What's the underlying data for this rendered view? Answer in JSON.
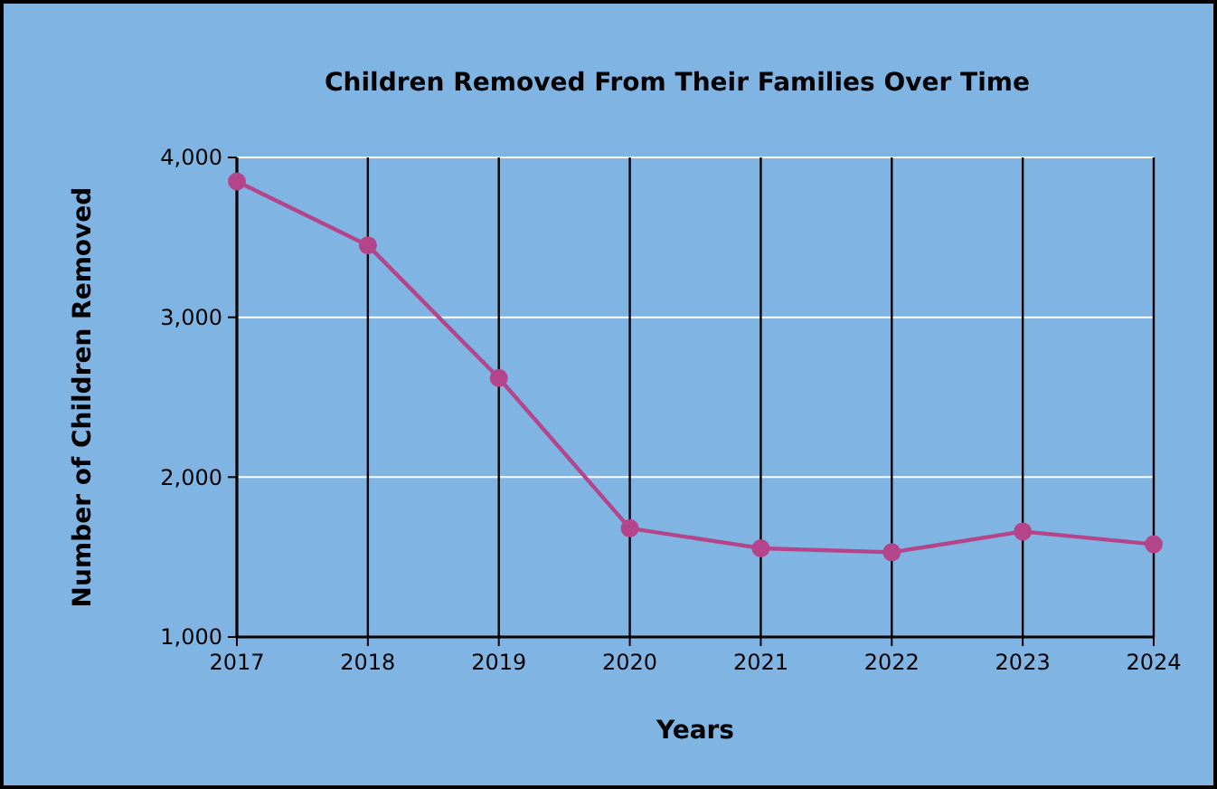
{
  "chart_data": {
    "type": "line",
    "title": "Children Removed From Their Families Over Time",
    "xlabel": "Years",
    "ylabel": "Number of Children Removed",
    "x": [
      2017,
      2018,
      2019,
      2020,
      2021,
      2022,
      2023,
      2024
    ],
    "series": [
      {
        "color": "#b5458a",
        "values": [
          3850,
          3450,
          2620,
          1680,
          1555,
          1530,
          1660,
          1580
        ]
      }
    ],
    "xlim": [
      2017,
      2024
    ],
    "xticks": [
      2017,
      2018,
      2019,
      2020,
      2021,
      2022,
      2023,
      2024
    ],
    "ylim": [
      1000,
      4000
    ],
    "yticks": [
      {
        "value": 1000,
        "label": "1,000"
      },
      {
        "value": 2000,
        "label": "2,000"
      },
      {
        "value": 3000,
        "label": "3,000"
      },
      {
        "value": 4000,
        "label": "4,000"
      }
    ],
    "grid": true,
    "marker": "circle",
    "line_style": "solid"
  }
}
